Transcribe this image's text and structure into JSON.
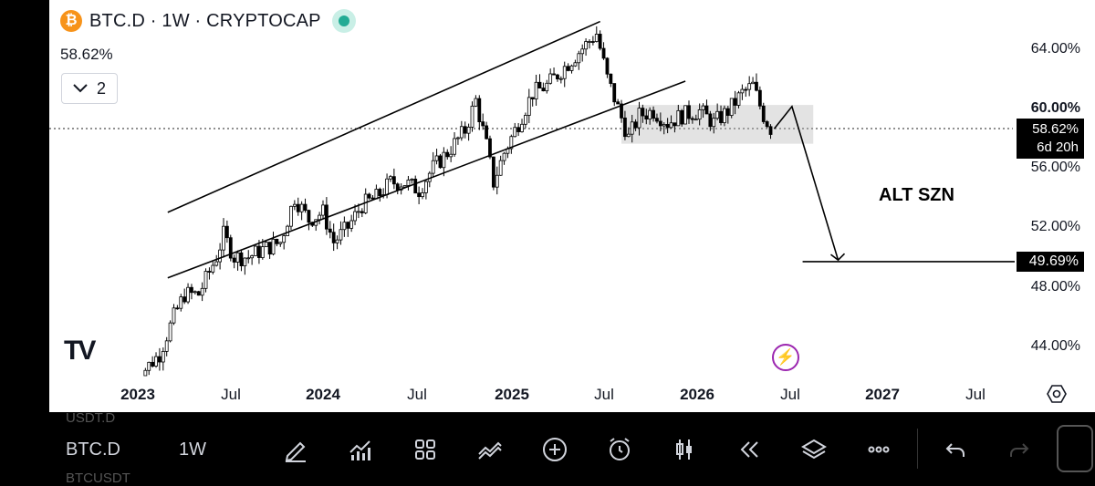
{
  "header": {
    "logo_glyph": "₿",
    "title": "BTC.D · 1W · CRYPTOCAP",
    "last_value": "58.62%",
    "collapse_count": "2",
    "collapse_icon": "chevron-down-icon"
  },
  "price_axis": {
    "labels": [
      "64.00%",
      "60.00%",
      "56.00%",
      "52.00%",
      "48.00%",
      "44.00%"
    ],
    "current_price": "58.62%",
    "countdown": "6d 20h",
    "target_price": "49.69%"
  },
  "time_axis": {
    "labels": [
      "2023",
      "Jul",
      "2024",
      "Jul",
      "2025",
      "Jul",
      "2026",
      "Jul",
      "2027",
      "Jul"
    ]
  },
  "annotation": {
    "text": "ALT SZN"
  },
  "watermark": "TV",
  "toolbar": {
    "ghost_top": "USDT.D",
    "ghost_bottom": "BTCUSDT",
    "symbol": "BTC.D",
    "interval": "1W",
    "icons": [
      "pencil-icon",
      "indicators-icon",
      "grid-icon",
      "chart-type-icon",
      "add-icon",
      "alert-icon",
      "candles-icon",
      "replay-icon",
      "layers-icon",
      "more-icon",
      "undo-icon",
      "redo-icon"
    ]
  },
  "chart_data": {
    "type": "candlestick",
    "symbol": "BTC.D",
    "interval": "1W",
    "x_range": [
      "2022-12-20",
      "2027-08-10"
    ],
    "ylim": [
      42.0,
      66.0
    ],
    "y_ticks": [
      44,
      48,
      52,
      56,
      60,
      64
    ],
    "close_path": [
      [
        "2022-12-26",
        40.3
      ],
      [
        "2023-01-16",
        42.5
      ],
      [
        "2023-02-13",
        43.5
      ],
      [
        "2023-03-13",
        46.0
      ],
      [
        "2023-04-03",
        47.5
      ],
      [
        "2023-05-01",
        47.5
      ],
      [
        "2023-06-05",
        50.0
      ],
      [
        "2023-06-19",
        51.5
      ],
      [
        "2023-07-10",
        50.0
      ],
      [
        "2023-08-07",
        50.0
      ],
      [
        "2023-09-04",
        50.5
      ],
      [
        "2023-10-09",
        51.0
      ],
      [
        "2023-11-06",
        54.0
      ],
      [
        "2023-12-04",
        52.5
      ],
      [
        "2024-01-01",
        53.0
      ],
      [
        "2024-01-22",
        51.0
      ],
      [
        "2024-02-19",
        52.0
      ],
      [
        "2024-03-18",
        53.5
      ],
      [
        "2024-04-15",
        54.0
      ],
      [
        "2024-05-13",
        55.0
      ],
      [
        "2024-06-10",
        55.0
      ],
      [
        "2024-07-08",
        54.5
      ],
      [
        "2024-08-05",
        56.0
      ],
      [
        "2024-09-02",
        57.0
      ],
      [
        "2024-10-07",
        58.5
      ],
      [
        "2024-10-28",
        60.5
      ],
      [
        "2024-11-18",
        57.5
      ],
      [
        "2024-12-02",
        55.0
      ],
      [
        "2024-12-23",
        57.0
      ],
      [
        "2025-01-20",
        59.0
      ],
      [
        "2025-02-17",
        61.0
      ],
      [
        "2025-03-17",
        61.5
      ],
      [
        "2025-04-14",
        62.5
      ],
      [
        "2025-05-12",
        63.5
      ],
      [
        "2025-06-09",
        64.5
      ],
      [
        "2025-06-23",
        65.0
      ],
      [
        "2025-07-14",
        62.0
      ],
      [
        "2025-08-04",
        60.0
      ],
      [
        "2025-08-25",
        58.0
      ],
      [
        "2025-09-15",
        59.5
      ],
      [
        "2025-10-13",
        59.8
      ],
      [
        "2025-11-10",
        59.0
      ],
      [
        "2025-12-08",
        59.5
      ],
      [
        "2026-01-12",
        59.8
      ],
      [
        "2026-02-09",
        59.0
      ],
      [
        "2026-03-09",
        59.8
      ],
      [
        "2026-04-06",
        61.0
      ],
      [
        "2026-04-27",
        61.5
      ],
      [
        "2026-05-18",
        59.5
      ],
      [
        "2026-06-01",
        58.62
      ]
    ],
    "channel_upper": [
      [
        "2023-03-01",
        53.0
      ],
      [
        "2025-06-30",
        65.8
      ]
    ],
    "channel_lower": [
      [
        "2023-03-01",
        48.6
      ],
      [
        "2025-12-15",
        61.8
      ]
    ],
    "range_box": {
      "x": [
        "2025-08-11",
        "2026-08-24"
      ],
      "y": [
        57.6,
        60.2
      ]
    },
    "projection": [
      [
        "2026-06-08",
        58.6
      ],
      [
        "2026-07-13",
        60.1
      ],
      [
        "2026-10-12",
        49.8
      ]
    ],
    "target_line": {
      "value": 49.69,
      "from": "2026-08-03"
    },
    "current_value": 58.62
  }
}
